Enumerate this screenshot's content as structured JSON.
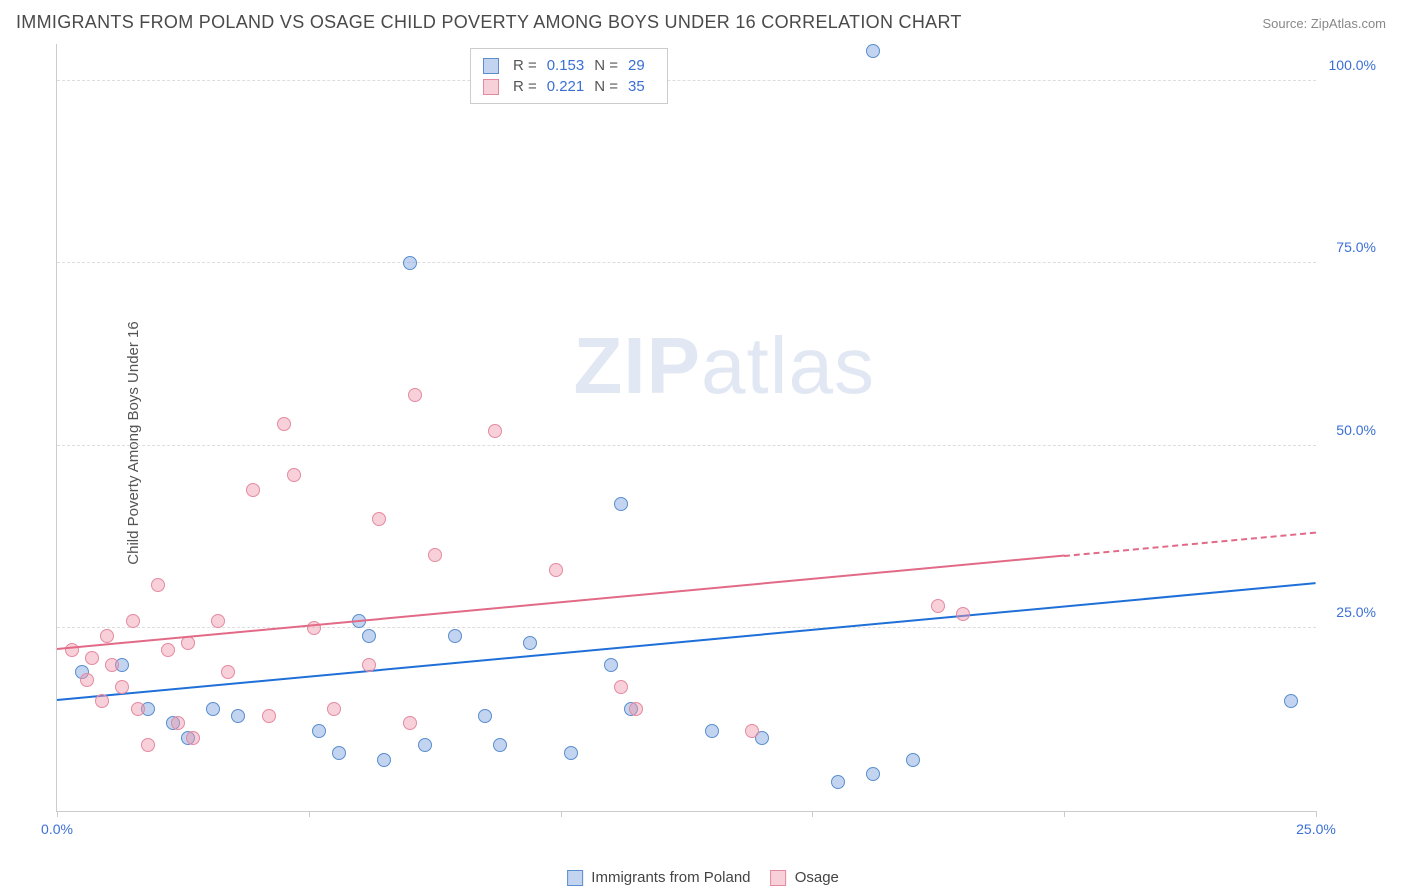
{
  "title": "IMMIGRANTS FROM POLAND VS OSAGE CHILD POVERTY AMONG BOYS UNDER 16 CORRELATION CHART",
  "source": "Source: ZipAtlas.com",
  "watermark_zip": "ZIP",
  "watermark_atlas": "atlas",
  "chart": {
    "type": "scatter",
    "background_color": "#ffffff",
    "grid_color": "#dddddd",
    "axis_color": "#cccccc",
    "xlabel": "",
    "ylabel": "Child Poverty Among Boys Under 16",
    "label_fontsize": 15,
    "label_color": "#555555",
    "xlim": [
      0,
      25
    ],
    "ylim": [
      0,
      105
    ],
    "ytick_values": [
      25,
      50,
      75,
      100
    ],
    "ytick_labels": [
      "25.0%",
      "50.0%",
      "75.0%",
      "100.0%"
    ],
    "ytick_color": "#3b6fd6",
    "xtick_values": [
      0,
      5,
      10,
      15,
      20,
      25
    ],
    "xtick_labels_shown": {
      "0": "0.0%",
      "25": "25.0%"
    },
    "xtick_color": "#3b6fd6",
    "marker_radius": 7,
    "marker_stroke_width": 1,
    "series": [
      {
        "name": "Immigrants from Poland",
        "color_fill": "rgba(120,160,220,0.45)",
        "color_stroke": "#5a8ecf",
        "R": "0.153",
        "N": "29",
        "trend": {
          "x1": 0,
          "y1": 15,
          "x2": 25,
          "y2": 31,
          "color": "#1f6fd8",
          "dash_from_x": null
        },
        "points": [
          [
            0.5,
            19
          ],
          [
            1.3,
            20
          ],
          [
            1.8,
            14
          ],
          [
            2.3,
            12
          ],
          [
            2.6,
            10
          ],
          [
            3.1,
            14
          ],
          [
            3.6,
            13
          ],
          [
            5.2,
            11
          ],
          [
            5.6,
            8
          ],
          [
            6.2,
            24
          ],
          [
            6.0,
            26
          ],
          [
            6.5,
            7
          ],
          [
            7.0,
            75
          ],
          [
            7.3,
            9
          ],
          [
            7.9,
            24
          ],
          [
            8.5,
            13
          ],
          [
            8.8,
            9
          ],
          [
            9.4,
            23
          ],
          [
            10.2,
            8
          ],
          [
            11.0,
            20
          ],
          [
            11.2,
            42
          ],
          [
            11.4,
            14
          ],
          [
            13.0,
            11
          ],
          [
            14.0,
            10
          ],
          [
            15.5,
            4
          ],
          [
            16.2,
            5
          ],
          [
            16.2,
            104
          ],
          [
            17.0,
            7
          ],
          [
            24.5,
            15
          ]
        ]
      },
      {
        "name": "Osage",
        "color_fill": "rgba(240,150,170,0.45)",
        "color_stroke": "#e48aa0",
        "R": "0.221",
        "N": "35",
        "trend": {
          "x1": 0,
          "y1": 22,
          "x2": 25,
          "y2": 38,
          "color": "#e26a87",
          "dash_from_x": 20
        },
        "points": [
          [
            0.3,
            22
          ],
          [
            0.6,
            18
          ],
          [
            0.7,
            21
          ],
          [
            0.9,
            15
          ],
          [
            1.0,
            24
          ],
          [
            1.1,
            20
          ],
          [
            1.3,
            17
          ],
          [
            1.5,
            26
          ],
          [
            1.6,
            14
          ],
          [
            1.8,
            9
          ],
          [
            2.0,
            31
          ],
          [
            2.2,
            22
          ],
          [
            2.4,
            12
          ],
          [
            2.6,
            23
          ],
          [
            2.7,
            10
          ],
          [
            3.2,
            26
          ],
          [
            3.4,
            19
          ],
          [
            3.9,
            44
          ],
          [
            4.5,
            53
          ],
          [
            4.2,
            13
          ],
          [
            4.7,
            46
          ],
          [
            5.1,
            25
          ],
          [
            5.5,
            14
          ],
          [
            6.2,
            20
          ],
          [
            6.4,
            40
          ],
          [
            7.0,
            12
          ],
          [
            7.1,
            57
          ],
          [
            7.5,
            35
          ],
          [
            8.7,
            52
          ],
          [
            9.9,
            33
          ],
          [
            11.2,
            17
          ],
          [
            11.5,
            14
          ],
          [
            13.8,
            11
          ],
          [
            17.5,
            28
          ],
          [
            18.0,
            27
          ]
        ]
      }
    ]
  },
  "legend_top": {
    "R_label": "R =",
    "N_label": "N =",
    "value_color": "#3b6fd6",
    "label_color": "#555555",
    "border_color": "#cccccc"
  },
  "legend_bottom": {
    "items": [
      "Immigrants from Poland",
      "Osage"
    ]
  }
}
